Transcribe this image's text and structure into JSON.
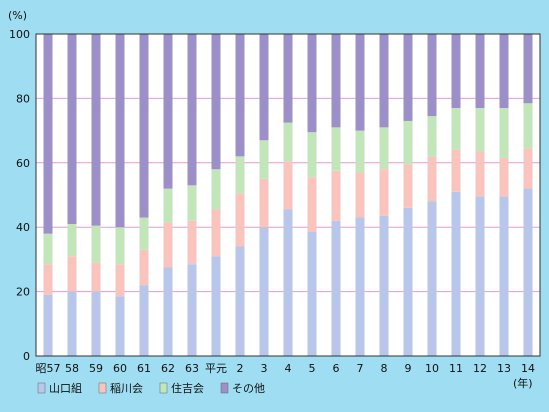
{
  "chart_data": {
    "type": "bar",
    "stacked": true,
    "percent": true,
    "ylabel": "(%)",
    "xlabel": "(年)",
    "ylim": [
      0,
      100
    ],
    "yticks": [
      0,
      20,
      40,
      60,
      80,
      100
    ],
    "grid": true,
    "legend_position": "bottom-left",
    "categories": [
      "昭57",
      "58",
      "59",
      "60",
      "61",
      "62",
      "63",
      "平元",
      "2",
      "3",
      "4",
      "5",
      "6",
      "7",
      "8",
      "9",
      "10",
      "11",
      "12",
      "13",
      "14"
    ],
    "series": [
      {
        "name": "山口組",
        "color": "#b8c6ea",
        "values": [
          19,
          20,
          20,
          18.5,
          22,
          27.5,
          28.5,
          31,
          34,
          40,
          45.5,
          38.5,
          42,
          43,
          43.5,
          46,
          48,
          51,
          49.5,
          49.5,
          52
        ]
      },
      {
        "name": "稲川会",
        "color": "#f9c4be",
        "values": [
          9.5,
          11,
          9,
          10,
          11,
          14,
          13.5,
          14.5,
          16.5,
          15,
          15,
          17,
          15.5,
          14,
          14.5,
          13.5,
          14,
          13,
          14,
          12,
          12.5
        ]
      },
      {
        "name": "住吉会",
        "color": "#c2e6b9",
        "values": [
          9.5,
          10,
          11.5,
          11.5,
          10,
          10.5,
          11,
          12.5,
          11.5,
          12,
          12,
          14,
          13.5,
          13,
          13,
          13.5,
          12.5,
          13,
          13.5,
          15.5,
          14
        ]
      },
      {
        "name": "その他",
        "color": "#9d8fc8",
        "values": [
          62,
          59,
          59.5,
          60,
          57,
          48,
          47,
          42,
          38,
          33,
          27.5,
          30.5,
          29,
          30,
          29,
          27,
          25.5,
          23,
          23,
          23,
          21.5
        ]
      }
    ]
  }
}
